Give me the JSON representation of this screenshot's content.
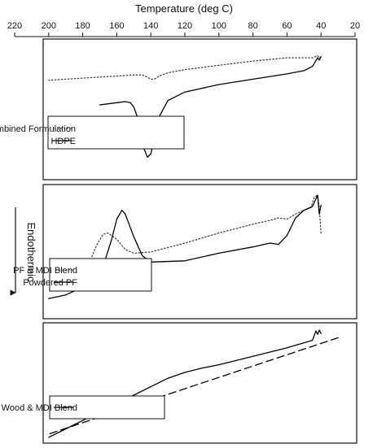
{
  "chart_data": [
    {
      "type": "line",
      "xlabel": "Temperature (deg C)",
      "ylabel": "Endothermic",
      "xlim": [
        20,
        220
      ],
      "x_ticks": [
        20,
        40,
        60,
        80,
        100,
        120,
        140,
        160,
        180,
        200,
        220
      ],
      "grid": false,
      "legend_position": "bottom-left",
      "series": [
        {
          "name": "Combined Formulation",
          "style": "dotted",
          "color": "#444444",
          "x": [
            40,
            41,
            42,
            45,
            50,
            60,
            80,
            100,
            120,
            130,
            135,
            138,
            140,
            142,
            145,
            150,
            160,
            180,
            200
          ],
          "y": [
            -0.9,
            -1.0,
            -0.8,
            -1.0,
            -1.0,
            -1.0,
            -1.3,
            -1.7,
            -2.1,
            -2.4,
            -2.7,
            -3.0,
            -3.0,
            -2.8,
            -2.6,
            -2.6,
            -2.7,
            -2.9,
            -3.1
          ]
        },
        {
          "name": "HDPE",
          "style": "solid",
          "color": "#000000",
          "x": [
            40,
            41,
            42,
            45,
            50,
            60,
            80,
            100,
            120,
            130,
            135,
            138,
            140,
            142,
            144,
            146,
            148,
            150,
            152,
            155,
            160,
            170
          ],
          "y": [
            -0.9,
            -1.2,
            -1.0,
            -1.8,
            -2.2,
            -2.5,
            -3.0,
            -3.5,
            -4.2,
            -5.0,
            -6.5,
            -8.5,
            -10.0,
            -10.3,
            -9.5,
            -8.0,
            -6.5,
            -5.6,
            -5.2,
            -5.1,
            -5.2,
            -5.4
          ]
        }
      ]
    },
    {
      "type": "line",
      "xlabel": "",
      "ylabel": "Endothermic",
      "xlim": [
        20,
        220
      ],
      "grid": false,
      "legend_position": "bottom-left",
      "series": [
        {
          "name": "PF & MDI Blend",
          "style": "dotted",
          "color": "#444444",
          "x": [
            40,
            41,
            42,
            44,
            46,
            50,
            55,
            60,
            65,
            70,
            80,
            100,
            120,
            140,
            150,
            155,
            160,
            165,
            168,
            172,
            175,
            180,
            190,
            200
          ],
          "y": [
            -3.0,
            -1.0,
            0.0,
            -0.2,
            -1.0,
            -1.2,
            -1.5,
            -1.9,
            -1.8,
            -2.0,
            -2.3,
            -3.0,
            -3.8,
            -4.5,
            -4.6,
            -4.3,
            -3.5,
            -3.0,
            -3.1,
            -4.0,
            -5.0,
            -6.0,
            -7.0,
            -7.5
          ]
        },
        {
          "name": "Powdered PF",
          "style": "solid",
          "color": "#000000",
          "x": [
            40,
            41,
            42,
            43,
            45,
            50,
            55,
            60,
            65,
            70,
            80,
            100,
            120,
            140,
            145,
            150,
            155,
            157,
            160,
            163,
            167,
            172,
            180,
            190,
            200
          ],
          "y": [
            -0.8,
            -1.5,
            0.0,
            -0.3,
            -0.9,
            -1.2,
            -1.8,
            -3.2,
            -3.9,
            -3.8,
            -4.1,
            -4.6,
            -5.2,
            -5.3,
            -4.8,
            -3.3,
            -1.5,
            -1.2,
            -1.9,
            -3.5,
            -5.2,
            -6.4,
            -7.3,
            -7.9,
            -8.2
          ]
        }
      ]
    },
    {
      "type": "line",
      "xlabel": "",
      "ylabel": "Endothermic",
      "xlim": [
        20,
        220
      ],
      "grid": false,
      "legend_position": "bottom-left",
      "series": [
        {
          "name": "Wood & MDI Blend",
          "style": "solid",
          "color": "#000000",
          "x": [
            40,
            41,
            42,
            43,
            45,
            50,
            60,
            80,
            100,
            110,
            120,
            130,
            140,
            150,
            160,
            170,
            180,
            190,
            200
          ],
          "y": [
            -0.5,
            -0.1,
            -0.6,
            -0.2,
            -1.3,
            -1.6,
            -2.2,
            -3.2,
            -4.2,
            -4.6,
            -5.1,
            -5.8,
            -6.8,
            -7.8,
            -8.8,
            -9.8,
            -10.8,
            -11.8,
            -12.8
          ]
        },
        {
          "name": "",
          "style": "dashed",
          "color": "#000000",
          "x": [
            30,
            200
          ],
          "y": [
            -1.0,
            -12.4
          ]
        }
      ]
    }
  ]
}
